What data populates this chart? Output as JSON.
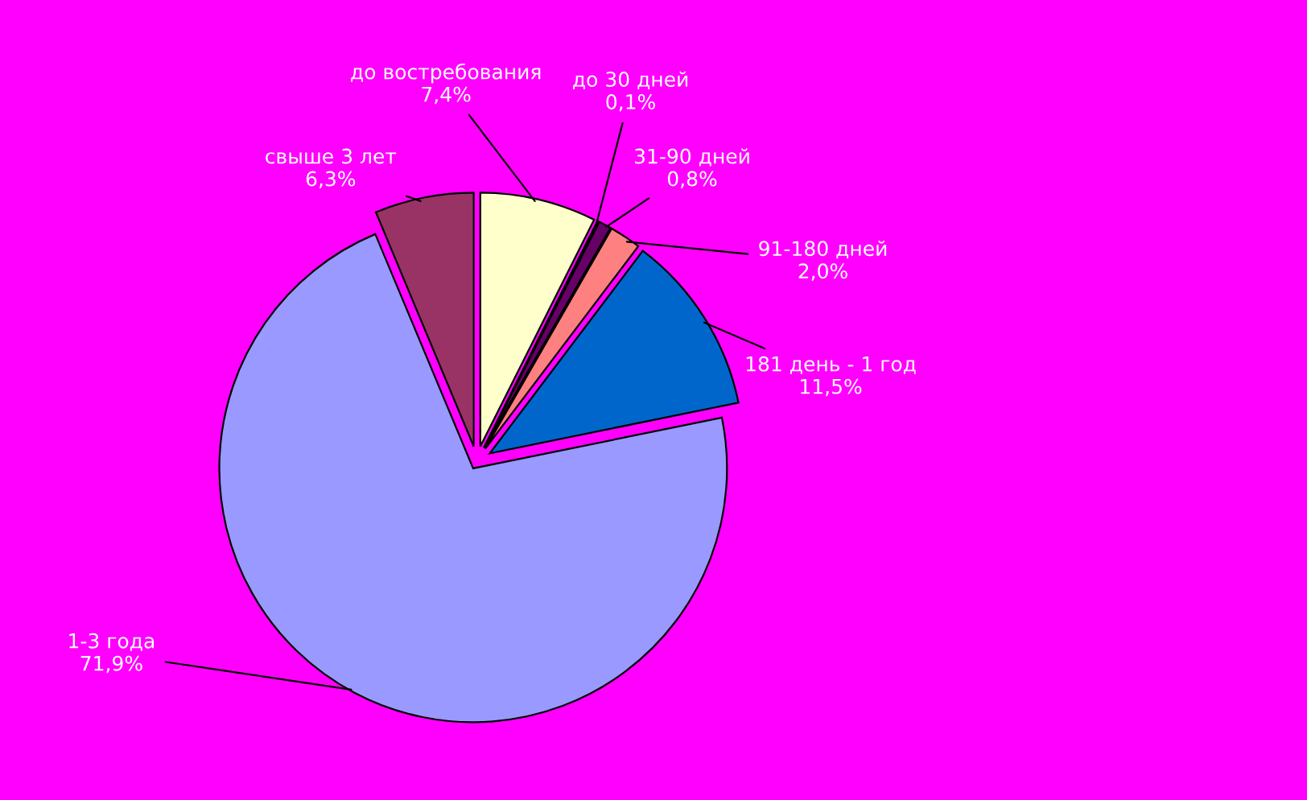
{
  "chart_data": {
    "type": "pie",
    "categories": [
      "до востребования",
      "до 30 дней",
      "31-90 дней",
      "91-180 дней",
      "181 день - 1 год",
      "1-3 года",
      "свыше 3 лет"
    ],
    "values": [
      7.4,
      0.1,
      0.8,
      2.0,
      11.5,
      71.9,
      6.3
    ],
    "value_labels": [
      "7,4%",
      "0,1%",
      "0,8%",
      "2,0%",
      "11,5%",
      "71,9%",
      "6,3%"
    ],
    "colors": [
      "#ffffcc",
      "#00cccc",
      "#660066",
      "#ff8080",
      "#0066cc",
      "#9999ff",
      "#993366"
    ],
    "legend": false
  }
}
